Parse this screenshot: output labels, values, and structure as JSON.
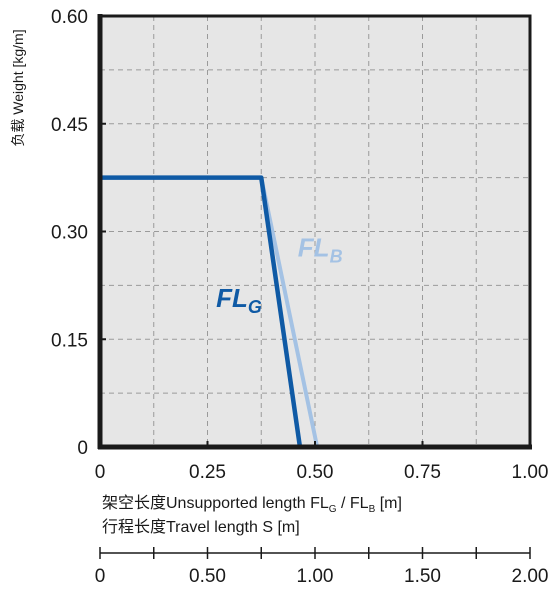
{
  "chart_data": {
    "type": "line",
    "ylabel": "负载 Weight  [kg/m]",
    "xlabel": "架空长度Unsupported length FL",
    "xlabel_sub_g": "G",
    "xlabel_mid": " / FL",
    "xlabel_sub_b": "B",
    "xlabel_tail": " [m]",
    "xlabel2": "行程长度Travel length S [m]",
    "xlim": [
      0,
      1.0
    ],
    "ylim": [
      0,
      0.6
    ],
    "x2lim": [
      0,
      2.0
    ],
    "grid": true,
    "x_ticks": [
      {
        "value": 0,
        "label": "0"
      },
      {
        "value": 0.25,
        "label": "0.25"
      },
      {
        "value": 0.5,
        "label": "0.50"
      },
      {
        "value": 0.75,
        "label": "0.75"
      },
      {
        "value": 1.0,
        "label": "1.00"
      }
    ],
    "y_ticks": [
      {
        "value": 0,
        "label": "0"
      },
      {
        "value": 0.15,
        "label": "0.15"
      },
      {
        "value": 0.3,
        "label": "0.30"
      },
      {
        "value": 0.45,
        "label": "0.45"
      },
      {
        "value": 0.6,
        "label": "0.60"
      }
    ],
    "x2_ticks": [
      {
        "value": 0,
        "label": "0"
      },
      {
        "value": 0.5,
        "label": "0.50"
      },
      {
        "value": 1.0,
        "label": "1.00"
      },
      {
        "value": 1.5,
        "label": "1.50"
      },
      {
        "value": 2.0,
        "label": "2.00"
      }
    ],
    "series": [
      {
        "name": "FL",
        "subscript": "B",
        "color": "#a4c2e4",
        "points": [
          [
            0.375,
            0.375
          ],
          [
            0.505,
            0
          ]
        ]
      },
      {
        "name": "FL",
        "subscript": "G",
        "color": "#0f5aa5",
        "points": [
          [
            0,
            0.375
          ],
          [
            0.375,
            0.375
          ],
          [
            0.465,
            0
          ]
        ]
      }
    ],
    "annotations": [
      {
        "series": 0,
        "text": "FL",
        "sub": "B",
        "x": 0.46,
        "y": 0.265
      },
      {
        "series": 1,
        "text": "FL",
        "sub": "G",
        "x": 0.27,
        "y": 0.195
      }
    ]
  }
}
